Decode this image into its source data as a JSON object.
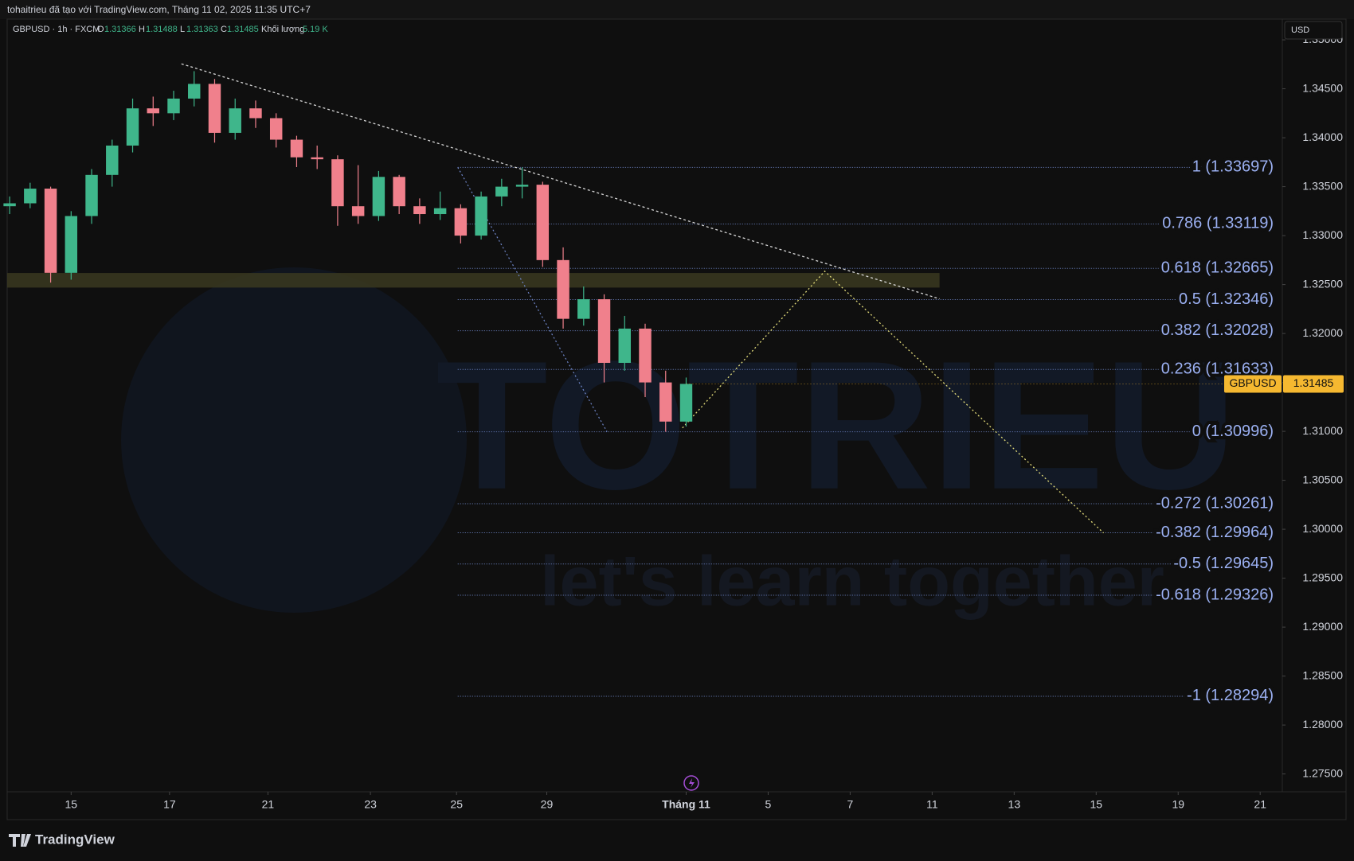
{
  "header": {
    "caption": "tohaitrieu đã tạo với TradingView.com, Tháng 11 02, 2025 11:35 UTC+7"
  },
  "legend": {
    "symbol": "GBPUSD · 1h · FXCM",
    "o_label": "O",
    "o": "1.31366",
    "h_label": "H",
    "h": "1.31488",
    "l_label": "L",
    "l": "1.31363",
    "c_label": "C",
    "c": "1.31485",
    "volume_label": "Khối lượng",
    "volume": "5.19 K"
  },
  "currency_button": "USD",
  "brand": "TradingView",
  "chart_data": {
    "type": "candlestick",
    "x": [
      -1.5,
      -1,
      -0.5,
      0,
      0.5,
      1,
      1.5,
      2,
      2.5,
      3,
      3.5,
      4,
      4.5,
      5,
      5.5,
      6,
      6.5,
      7,
      7.5,
      8,
      8.5,
      9,
      9.5,
      10,
      10.5,
      11,
      11.5,
      12,
      12.5,
      13,
      13.5,
      14,
      14.5,
      15
    ],
    "open": [
      1.333,
      1.3333,
      1.3348,
      1.3262,
      1.332,
      1.3362,
      1.3392,
      1.343,
      1.3425,
      1.344,
      1.3455,
      1.3405,
      1.343,
      1.342,
      1.3398,
      1.338,
      1.3378,
      1.333,
      1.332,
      1.336,
      1.333,
      1.3322,
      1.3328,
      1.33,
      1.334,
      1.335,
      1.3352,
      1.3275,
      1.3215,
      1.3235,
      1.317,
      1.3205,
      1.315,
      1.311
    ],
    "high": [
      1.334,
      1.3354,
      1.335,
      1.3325,
      1.3368,
      1.3398,
      1.344,
      1.3442,
      1.3448,
      1.3468,
      1.346,
      1.344,
      1.3438,
      1.3425,
      1.3402,
      1.3392,
      1.3382,
      1.3372,
      1.3366,
      1.3362,
      1.3338,
      1.3345,
      1.3332,
      1.3345,
      1.3358,
      1.33697,
      1.3355,
      1.3288,
      1.3248,
      1.324,
      1.3218,
      1.321,
      1.3162,
      1.3155
    ],
    "low": [
      1.3322,
      1.3328,
      1.3252,
      1.3255,
      1.3312,
      1.335,
      1.3385,
      1.3412,
      1.3418,
      1.3432,
      1.3395,
      1.3398,
      1.341,
      1.339,
      1.337,
      1.3368,
      1.331,
      1.3312,
      1.3315,
      1.3322,
      1.3312,
      1.3316,
      1.3292,
      1.3296,
      1.333,
      1.3338,
      1.3268,
      1.3205,
      1.3208,
      1.315,
      1.3162,
      1.3135,
      1.30996,
      1.3105
    ],
    "close": [
      1.3333,
      1.3348,
      1.3262,
      1.332,
      1.3362,
      1.3392,
      1.343,
      1.3425,
      1.344,
      1.3455,
      1.3405,
      1.343,
      1.342,
      1.3398,
      1.338,
      1.3378,
      1.333,
      1.332,
      1.336,
      1.333,
      1.3322,
      1.3328,
      1.33,
      1.334,
      1.335,
      1.3352,
      1.3275,
      1.3215,
      1.3235,
      1.317,
      1.3205,
      1.315,
      1.311,
      1.31485
    ],
    "up_color": "#3fb68b",
    "down_color": "#f0808c",
    "xlim": [
      -1.56,
      29.54
    ],
    "xticks": [
      {
        "value": 0,
        "label": "15"
      },
      {
        "value": 2.4,
        "label": "17"
      },
      {
        "value": 4.8,
        "label": "21"
      },
      {
        "value": 7.3,
        "label": "23"
      },
      {
        "value": 9.4,
        "label": "25"
      },
      {
        "value": 11.6,
        "label": "29"
      },
      {
        "value": 15,
        "label": "Tháng 11"
      },
      {
        "value": 17,
        "label": "5"
      },
      {
        "value": 19,
        "label": "7"
      },
      {
        "value": 21,
        "label": "11"
      },
      {
        "value": 23,
        "label": "13"
      },
      {
        "value": 25,
        "label": "15"
      },
      {
        "value": 27,
        "label": "19"
      },
      {
        "value": 29,
        "label": "21"
      }
    ],
    "ylim": [
      1.27318,
      1.35212
    ],
    "yticks": [
      {
        "value": 1.35,
        "label": "1.35000"
      },
      {
        "value": 1.345,
        "label": "1.34500"
      },
      {
        "value": 1.34,
        "label": "1.34000"
      },
      {
        "value": 1.335,
        "label": "1.33500"
      },
      {
        "value": 1.33,
        "label": "1.33000"
      },
      {
        "value": 1.325,
        "label": "1.32500"
      },
      {
        "value": 1.32,
        "label": "1.32000"
      },
      {
        "value": 1.315,
        "label": "1.31500"
      },
      {
        "value": 1.31,
        "label": "1.31000"
      },
      {
        "value": 1.305,
        "label": "1.30500"
      },
      {
        "value": 1.3,
        "label": "1.30000"
      },
      {
        "value": 1.295,
        "label": "1.29500"
      },
      {
        "value": 1.29,
        "label": "1.29000"
      },
      {
        "value": 1.285,
        "label": "1.28500"
      },
      {
        "value": 1.28,
        "label": "1.28000"
      },
      {
        "value": 1.275,
        "label": "1.27500"
      }
    ],
    "fib_anchor": {
      "x": [
        9.43,
        13.07
      ],
      "y": [
        1.33697,
        1.30996
      ],
      "color": "#6f86c9"
    },
    "fib_levels": [
      {
        "value": 1.33697,
        "label": "1 (1.33697)"
      },
      {
        "value": 1.33119,
        "label": "0.786 (1.33119)"
      },
      {
        "value": 1.32665,
        "label": "0.618 (1.32665)"
      },
      {
        "value": 1.32346,
        "label": "0.5 (1.32346)"
      },
      {
        "value": 1.32028,
        "label": "0.382 (1.32028)"
      },
      {
        "value": 1.31633,
        "label": "0.236 (1.31633)"
      },
      {
        "value": 1.30996,
        "label": "0 (1.30996)"
      },
      {
        "value": 1.30261,
        "label": "-0.272 (1.30261)"
      },
      {
        "value": 1.29964,
        "label": "-0.382 (1.29964)"
      },
      {
        "value": 1.29645,
        "label": "-0.5 (1.29645)"
      },
      {
        "value": 1.29326,
        "label": "-0.618 (1.29326)"
      },
      {
        "value": 1.28294,
        "label": "-1 (1.28294)"
      }
    ],
    "fib_color": "#9bb0f2",
    "trendline": {
      "x": [
        2.69,
        21.18
      ],
      "y": [
        1.34755,
        1.32354
      ],
      "color": "#d8d8d8"
    },
    "projection": {
      "x": [
        14.91,
        18.38,
        25.18
      ],
      "y": [
        1.31035,
        1.32636,
        1.29962
      ],
      "color": "#e3dc7a"
    },
    "zone": {
      "x": [
        -1.56,
        21.18
      ],
      "y": [
        1.32469,
        1.32618
      ],
      "color": "#3a3820"
    },
    "last_price": 1.31485,
    "last_symbol": "GBPUSD",
    "last_color": "#f5b830",
    "watermark": {
      "title": "TOTRIEU",
      "subtitle": "let's learn together"
    }
  }
}
